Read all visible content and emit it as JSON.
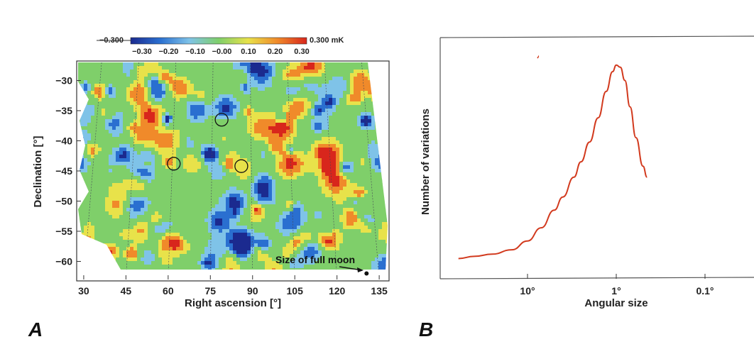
{
  "chart_data": [
    {
      "type": "heatmap",
      "panel_label": "A",
      "xlabel": "Right ascension [°]",
      "ylabel": "Declination [°]",
      "x_ticks": [
        30,
        45,
        60,
        75,
        90,
        105,
        120,
        135
      ],
      "y_ticks": [
        -30,
        -35,
        -40,
        -45,
        -50,
        -55,
        -60
      ],
      "xlim": [
        28,
        138
      ],
      "ylim": [
        -63,
        -27
      ],
      "colorbar": {
        "min_label": "−0.300",
        "max_label": "0.300 mK",
        "tick_labels": [
          "−0.30",
          "−0.20",
          "−0.10",
          "−0.00",
          "0.10",
          "0.20",
          "0.30"
        ],
        "colors": [
          "#1b2a8f",
          "#2a6fd0",
          "#7fc3e8",
          "#7fcf6a",
          "#e8e24a",
          "#f08a2a",
          "#d8261c"
        ]
      },
      "circles": [
        {
          "ra": 79,
          "dec": -36.5
        },
        {
          "ra": 62,
          "dec": -43.8
        },
        {
          "ra": 86,
          "dec": -44.2
        }
      ],
      "annotation": "Size of full moon",
      "moon_marker": {
        "ra": 130.5,
        "dec": -62
      }
    },
    {
      "type": "line",
      "panel_label": "B",
      "xlabel": "Angular size",
      "ylabel": "Number of variations",
      "x_scale": "log-reversed",
      "x_ticks": [
        "10°",
        "1°",
        "0.1°"
      ],
      "x_tick_values": [
        10,
        1,
        0.1
      ],
      "series": [
        {
          "color": "#d23a1e",
          "x": [
            60,
            40,
            25,
            15,
            10,
            7,
            5,
            4,
            3,
            2.5,
            2,
            1.6,
            1.3,
            1.1,
            1.0,
            0.9,
            0.8,
            0.7,
            0.6,
            0.5,
            0.45
          ],
          "y": [
            0.05,
            0.06,
            0.07,
            0.09,
            0.13,
            0.19,
            0.27,
            0.33,
            0.42,
            0.49,
            0.58,
            0.69,
            0.81,
            0.9,
            0.93,
            0.92,
            0.86,
            0.74,
            0.6,
            0.47,
            0.42
          ]
        }
      ]
    }
  ]
}
